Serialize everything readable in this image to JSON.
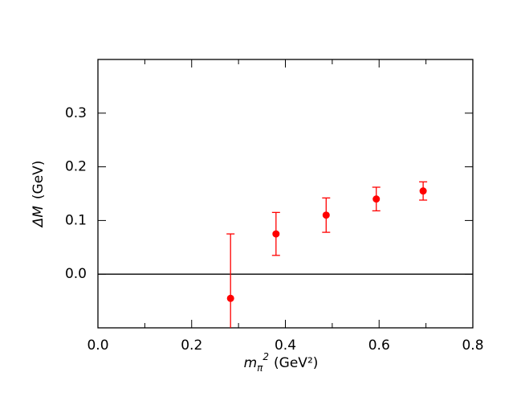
{
  "chart_data": {
    "type": "scatter",
    "ylabel": {
      "symbol": "ΔM",
      "unit": "(GeV)"
    },
    "xlabel": {
      "symbol": "m",
      "subscript": "π",
      "superscript": "2",
      "unit": "(GeV²)"
    },
    "series": [
      {
        "color": "#ff0000",
        "x": [
          0.283,
          0.38,
          0.487,
          0.594,
          0.694
        ],
        "values": [
          -0.045,
          0.075,
          0.11,
          0.14,
          0.155
        ],
        "errors": [
          0.12,
          0.04,
          0.032,
          0.022,
          0.017
        ]
      }
    ],
    "xlim": [
      0,
      0.8
    ],
    "ylim": [
      -0.1,
      0.4
    ],
    "xticks": [
      {
        "value": 0,
        "label": "0.0"
      },
      0.2,
      0.4,
      0.6,
      0.8
    ],
    "xminorticks": [
      0.1,
      0.3,
      0.5,
      0.7
    ],
    "yticks": [
      {
        "value": 0,
        "label": "0.0"
      },
      0.1,
      0.2,
      0.3
    ],
    "zero_line": true
  }
}
